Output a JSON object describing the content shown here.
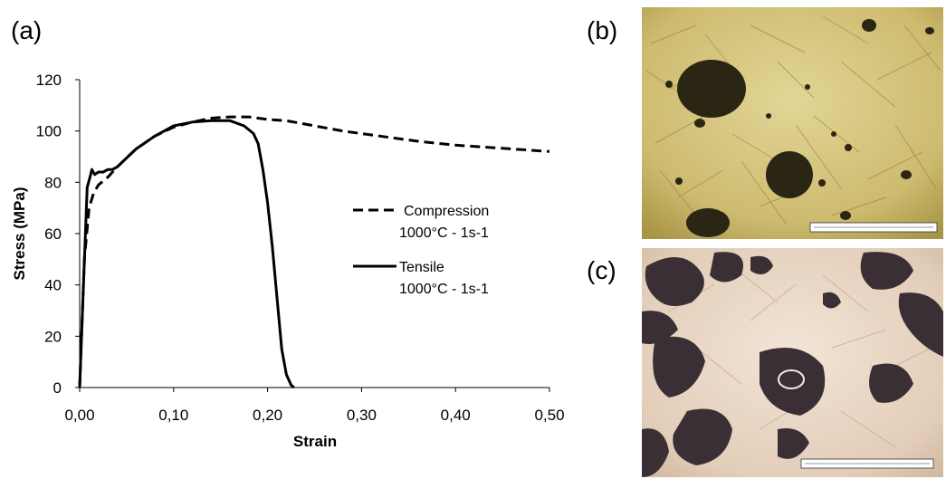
{
  "panels": {
    "a": "(a)",
    "b": "(b)",
    "c": "(c)"
  },
  "chart_data": {
    "type": "line",
    "title": "",
    "xlabel": "Strain",
    "ylabel": "Stress (MPa)",
    "xlim": [
      0,
      0.5
    ],
    "ylim": [
      0,
      120
    ],
    "x_ticks": [
      0,
      0.1,
      0.2,
      0.3,
      0.4,
      0.5
    ],
    "x_tick_labels": [
      "0,00",
      "0,10",
      "0,20",
      "0,30",
      "0,40",
      "0,50"
    ],
    "y_ticks": [
      0,
      20,
      40,
      60,
      80,
      100,
      120
    ],
    "y_tick_labels": [
      "0",
      "20",
      "40",
      "60",
      "80",
      "100",
      "120"
    ],
    "grid": false,
    "legend_position": "right",
    "series": [
      {
        "name": "Compression",
        "subtitle": "1000°C - 1s-1",
        "style": "dashed",
        "color": "#000000",
        "x": [
          0,
          0.005,
          0.01,
          0.015,
          0.02,
          0.03,
          0.04,
          0.06,
          0.08,
          0.1,
          0.12,
          0.14,
          0.16,
          0.18,
          0.2,
          0.22,
          0.25,
          0.28,
          0.3,
          0.33,
          0.36,
          0.4,
          0.44,
          0.48,
          0.5
        ],
        "y": [
          0,
          50,
          70,
          76,
          79,
          82,
          86,
          93,
          98,
          101.5,
          103.5,
          105,
          105.5,
          105.5,
          104.5,
          104,
          102,
          100,
          99,
          97.5,
          96,
          94.5,
          93.5,
          92.5,
          92
        ]
      },
      {
        "name": "Tensile",
        "subtitle": "1000°C - 1s-1",
        "style": "solid",
        "color": "#000000",
        "x": [
          0,
          0.004,
          0.008,
          0.011,
          0.013,
          0.016,
          0.02,
          0.025,
          0.03,
          0.035,
          0.04,
          0.06,
          0.08,
          0.1,
          0.12,
          0.14,
          0.16,
          0.175,
          0.185,
          0.19,
          0.195,
          0.2,
          0.205,
          0.21,
          0.215,
          0.22,
          0.225,
          0.228
        ],
        "y": [
          0,
          40,
          78,
          82,
          85,
          83,
          84,
          84,
          85,
          85,
          86,
          93,
          98,
          102,
          103.5,
          104,
          104,
          102,
          99,
          95,
          85,
          72,
          55,
          35,
          15,
          5,
          1,
          0
        ]
      }
    ]
  },
  "images": {
    "b": {
      "description_color": "#d4c37a"
    },
    "c": {
      "description_color": "#e6d2bf"
    }
  }
}
